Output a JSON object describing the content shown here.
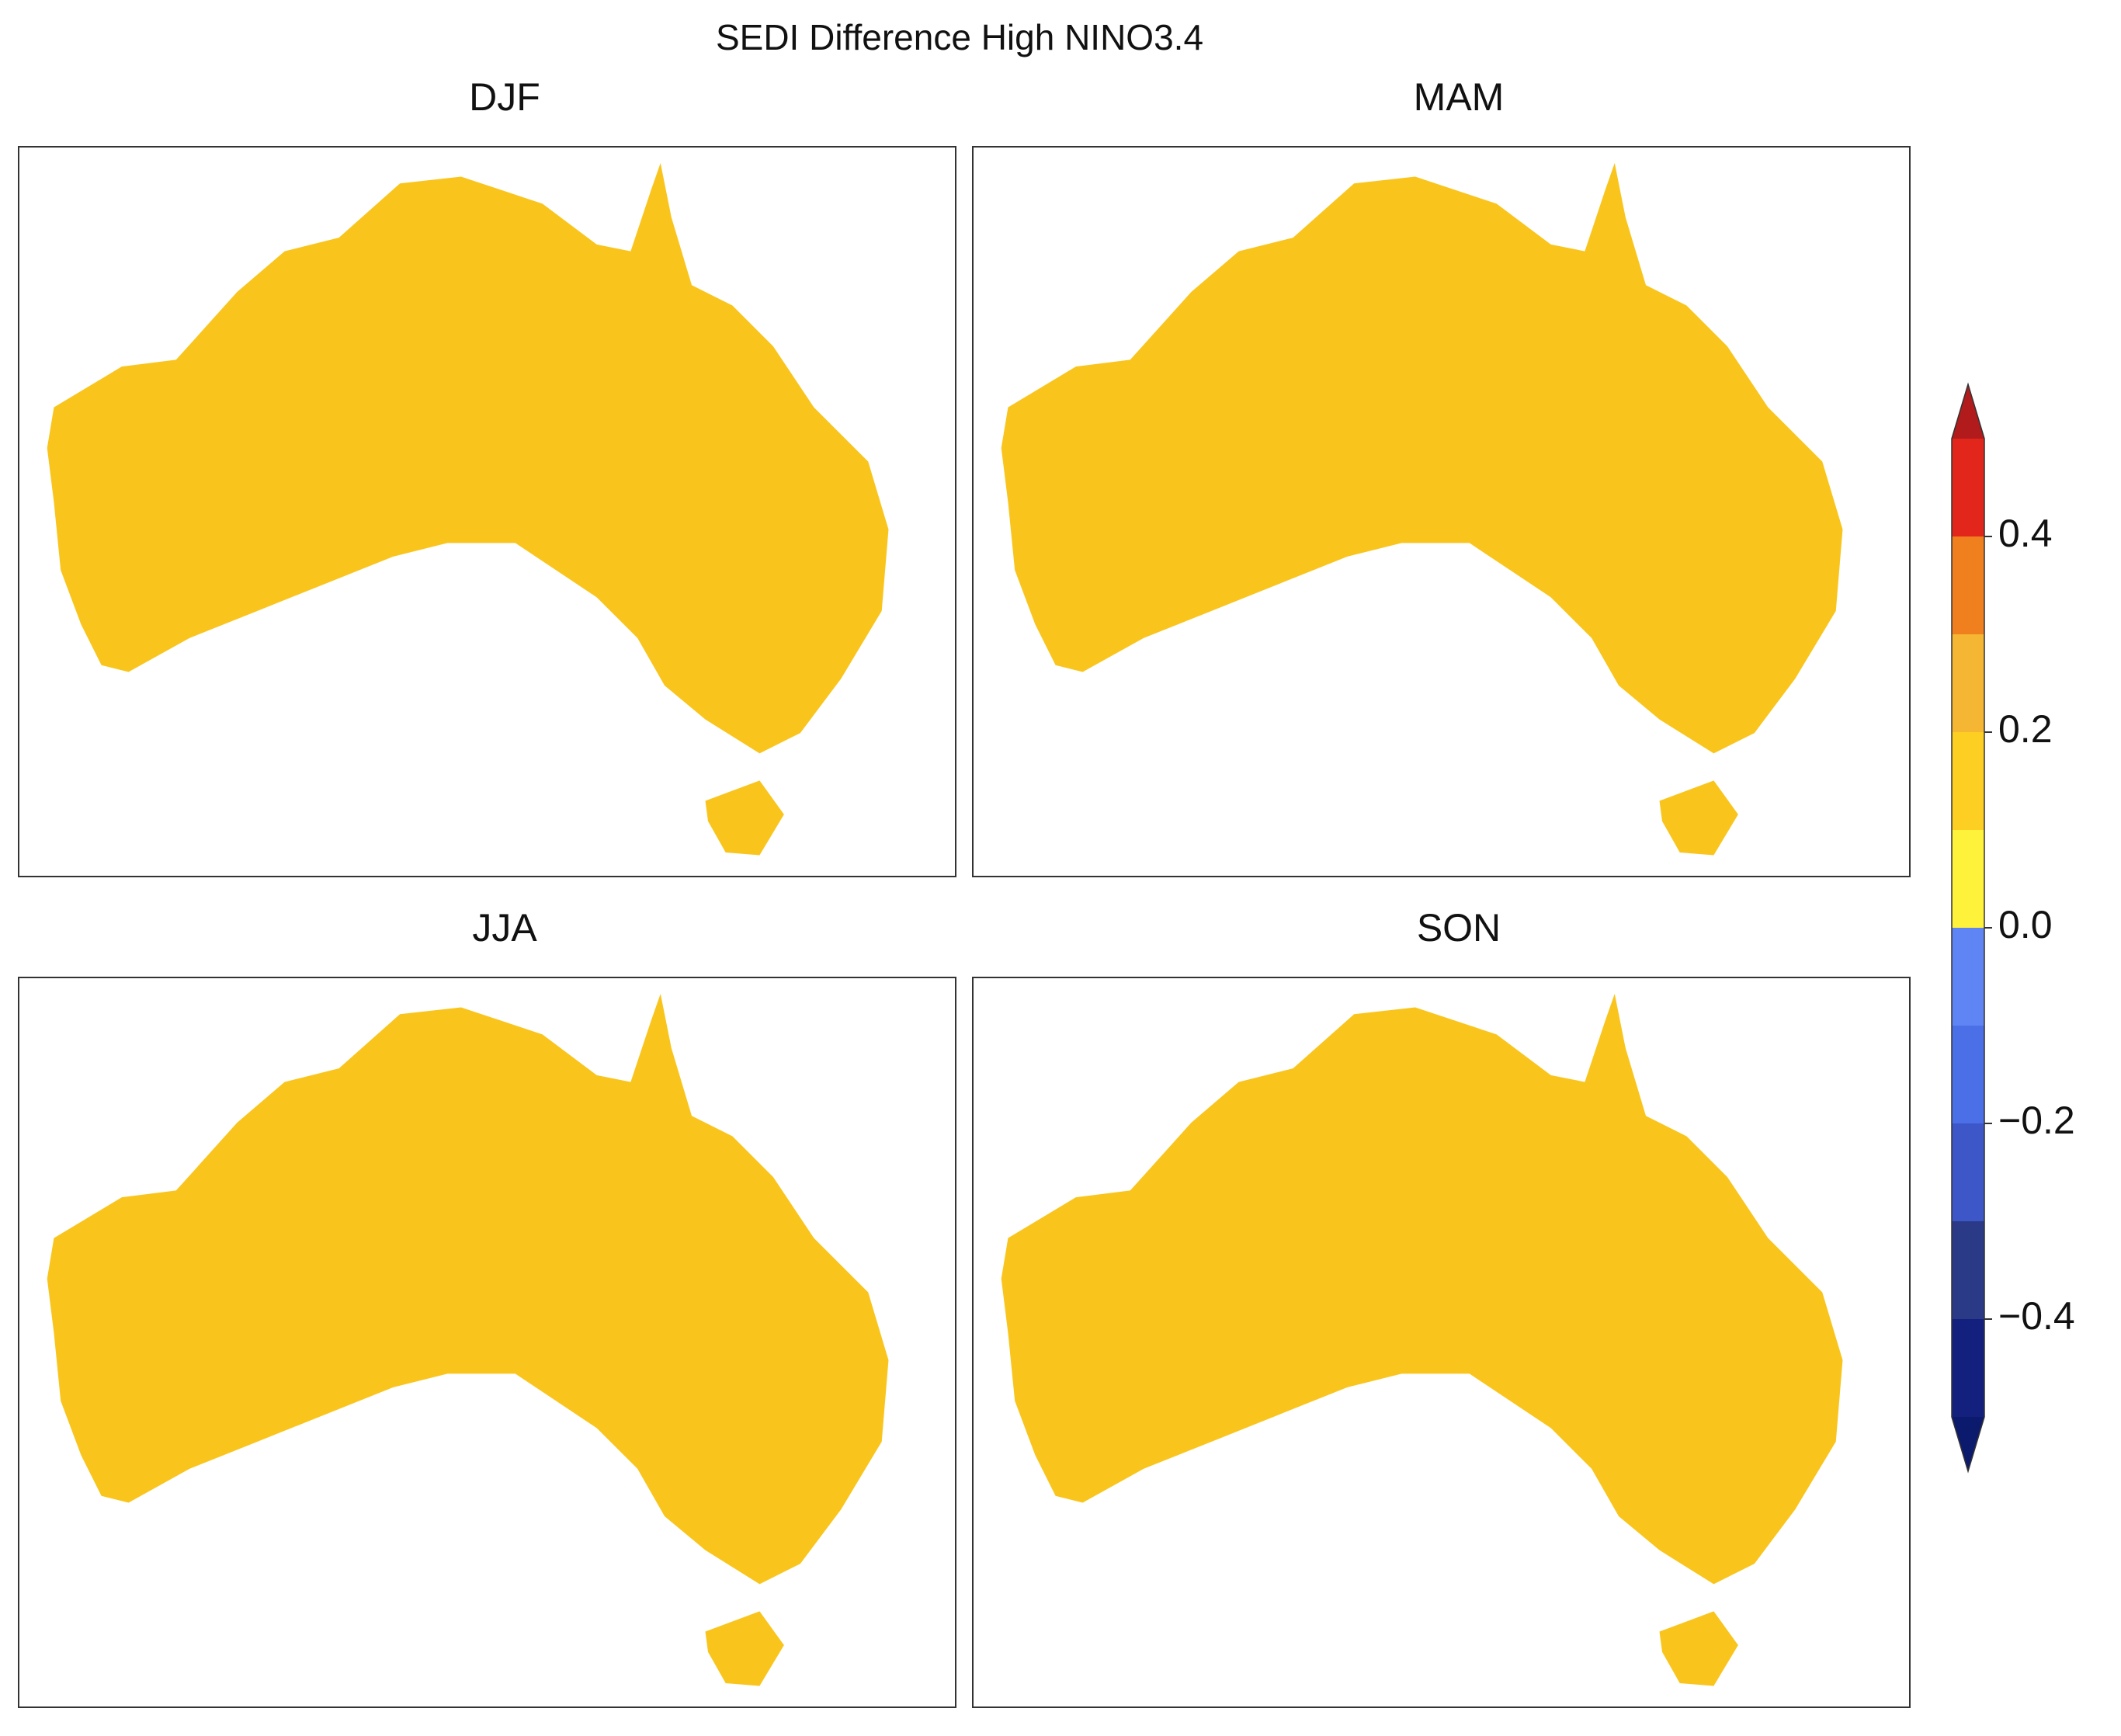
{
  "chart_data": {
    "type": "map",
    "title": "SEDI Difference High NINO3.4",
    "panels": [
      {
        "title": "DJF"
      },
      {
        "title": "MAM"
      },
      {
        "title": "JJA"
      },
      {
        "title": "SON"
      }
    ],
    "colorbar": {
      "ylim": [
        -0.5,
        0.5
      ],
      "levels": [
        -0.5,
        -0.4,
        -0.3,
        -0.2,
        -0.1,
        0,
        0.1,
        0.2,
        0.3,
        0.4,
        0.5
      ],
      "colors": [
        "#13207e",
        "#2b3a86",
        "#3d57c8",
        "#4b6fe6",
        "#5f85f4",
        "#fff23a",
        "#fccf22",
        "#f5b733",
        "#f07f1e",
        "#e3261c"
      ],
      "under_color": "#0c1a6e",
      "over_color": "#b11b1b",
      "yticks": [
        {
          "value": -0.4,
          "label": "−0.4"
        },
        {
          "value": -0.2,
          "label": "−0.2"
        },
        {
          "value": 0,
          "label": "0.0"
        },
        0.2,
        0.4
      ]
    }
  }
}
